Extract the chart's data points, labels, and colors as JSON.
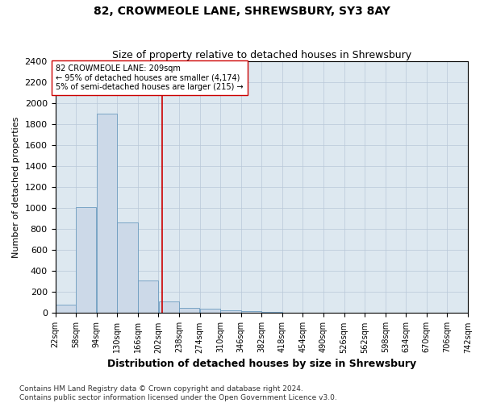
{
  "title": "82, CROWMEOLE LANE, SHREWSBURY, SY3 8AY",
  "subtitle": "Size of property relative to detached houses in Shrewsbury",
  "xlabel": "Distribution of detached houses by size in Shrewsbury",
  "ylabel": "Number of detached properties",
  "bar_color": "#ccd9e8",
  "bar_edge_color": "#6b9bbf",
  "bin_edges": [
    22,
    58,
    94,
    130,
    166,
    202,
    238,
    274,
    310,
    346,
    382,
    418,
    454,
    490,
    526,
    562,
    598,
    634,
    670,
    706,
    742
  ],
  "bar_heights": [
    80,
    1010,
    1900,
    860,
    310,
    110,
    50,
    40,
    30,
    20,
    10,
    5,
    2,
    1,
    1,
    1,
    0,
    0,
    0,
    0
  ],
  "property_size": 209,
  "red_line_color": "#cc0000",
  "annotation_text": "82 CROWMEOLE LANE: 209sqm\n← 95% of detached houses are smaller (4,174)\n5% of semi-detached houses are larger (215) →",
  "annotation_box_color": "#ffffff",
  "annotation_box_edge": "#cc0000",
  "ylim": [
    0,
    2400
  ],
  "yticks": [
    0,
    200,
    400,
    600,
    800,
    1000,
    1200,
    1400,
    1600,
    1800,
    2000,
    2200,
    2400
  ],
  "footer_line1": "Contains HM Land Registry data © Crown copyright and database right 2024.",
  "footer_line2": "Contains public sector information licensed under the Open Government Licence v3.0.",
  "bg_color": "#ffffff",
  "plot_bg_color": "#dde8f0",
  "grid_color": "#b8c8d8",
  "title_fontsize": 10,
  "subtitle_fontsize": 9,
  "ylabel_fontsize": 8,
  "xlabel_fontsize": 9,
  "ytick_fontsize": 8,
  "xtick_fontsize": 7,
  "annotation_fontsize": 7,
  "footer_fontsize": 6.5
}
